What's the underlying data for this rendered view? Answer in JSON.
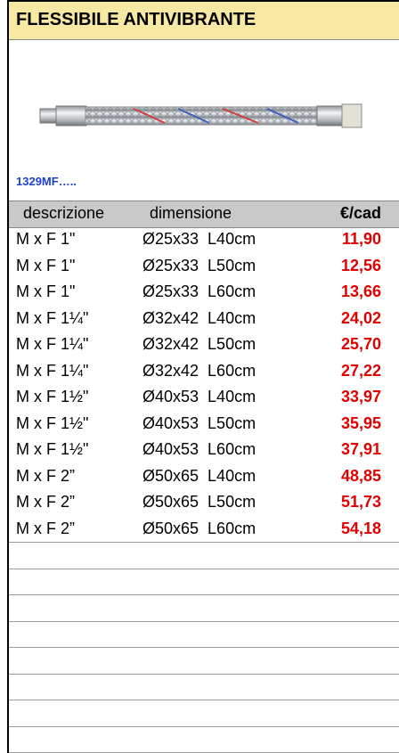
{
  "header": {
    "title": "FLESSIBILE ANTIVIBRANTE"
  },
  "code": "1329MF…..",
  "table": {
    "columns": [
      "descrizione",
      "dimensione",
      "€/cad"
    ],
    "rows": [
      [
        "M x F 1\"",
        "Ø25x33  L40cm",
        "11,90"
      ],
      [
        "M x F 1\"",
        "Ø25x33  L50cm",
        "12,56"
      ],
      [
        "M x F 1\"",
        "Ø25x33  L60cm",
        "13,66"
      ],
      [
        "M x F 1¼\"",
        "Ø32x42  L40cm",
        "24,02"
      ],
      [
        "M x F 1¼\"",
        "Ø32x42  L50cm",
        "25,70"
      ],
      [
        "M x F 1¼\"",
        "Ø32x42  L60cm",
        "27,22"
      ],
      [
        "M x F 1½\"",
        "Ø40x53  L40cm",
        "33,97"
      ],
      [
        "M x F 1½\"",
        "Ø40x53  L50cm",
        "35,95"
      ],
      [
        "M x F 1½\"",
        "Ø40x53  L60cm",
        "37,91"
      ],
      [
        "M x F 2”",
        "Ø50x65  L40cm",
        "48,85"
      ],
      [
        "M x F 2”",
        "Ø50x65  L50cm",
        "51,73"
      ],
      [
        "M x F 2”",
        "Ø50x65  L60cm",
        "54,18"
      ]
    ]
  }
}
